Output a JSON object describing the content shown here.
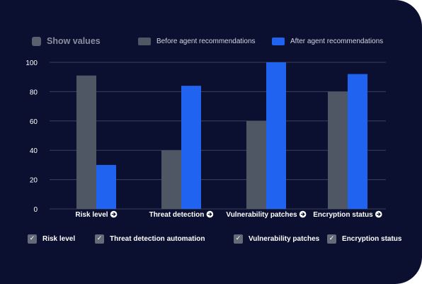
{
  "controls": {
    "show_values_label": "Show values"
  },
  "legend": {
    "before_label": "Before agent recommendations",
    "after_label": "After agent recommendations"
  },
  "colors": {
    "background": "#0b1030",
    "before": "#4f5765",
    "after": "#1f63f0",
    "grid": "#3a4058",
    "text": "#ffffff",
    "muted": "#8a8fa0"
  },
  "chart_data": {
    "type": "bar",
    "categories": [
      "Risk level",
      "Threat detection",
      "Vulnerability patches",
      "Encryption status"
    ],
    "series": [
      {
        "name": "Before agent recommendations",
        "values": [
          91,
          40,
          60,
          80
        ]
      },
      {
        "name": "After agent recommendations",
        "values": [
          30,
          84,
          100,
          92
        ]
      }
    ],
    "yticks": [
      0,
      20,
      40,
      60,
      80,
      100
    ],
    "ylim": [
      0,
      100
    ],
    "grid": true,
    "legend_position": "top-right",
    "category_icon": "arrow-circle-right-icon"
  },
  "filters": [
    {
      "label": "Risk level",
      "checked": true
    },
    {
      "label": "Threat detection automation",
      "checked": true
    },
    {
      "label": "Vulnerability patches",
      "checked": true
    },
    {
      "label": "Encryption status",
      "checked": true
    }
  ],
  "check_glyph": "✓"
}
